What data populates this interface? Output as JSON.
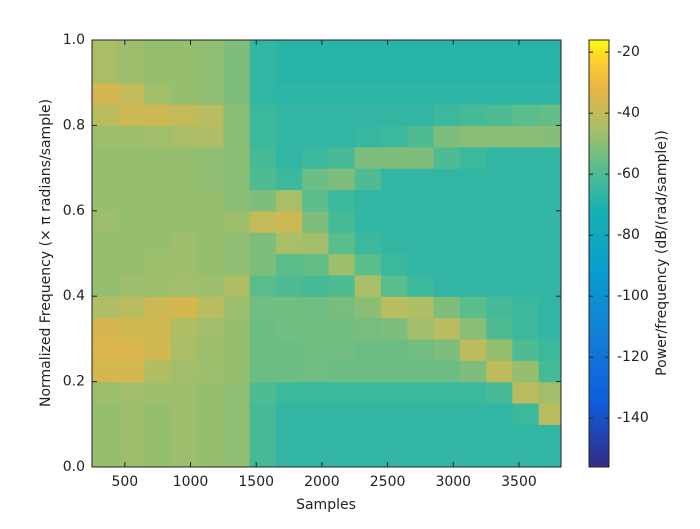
{
  "chart_data": {
    "type": "heatmap",
    "xlabel": "Samples",
    "ylabel": "Normalized Frequency (× π radians/sample)",
    "colorbar_label": "Power/frequency (dB/(rad/sample))",
    "colormap": "parula",
    "xlim": [
      250,
      3820
    ],
    "xticks": [
      500,
      1000,
      1500,
      2000,
      2500,
      3000,
      3500
    ],
    "ylim": [
      0,
      1
    ],
    "yticks": [
      {
        "value": 0,
        "label": "0.0"
      },
      0.2,
      0.4,
      0.6,
      0.8,
      {
        "value": 1,
        "label": "1.0"
      }
    ],
    "clim": [
      -156,
      -16
    ],
    "cticks": [
      -140,
      -120,
      -100,
      -80,
      -60,
      -40,
      -20
    ],
    "x": [
      350,
      550,
      750,
      950,
      1150,
      1350,
      1550,
      1750,
      1950,
      2150,
      2350,
      2550,
      2750,
      2950,
      3150,
      3350,
      3550,
      3750
    ],
    "y": [
      0.025,
      0.075,
      0.125,
      0.175,
      0.225,
      0.275,
      0.325,
      0.375,
      0.425,
      0.475,
      0.525,
      0.575,
      0.625,
      0.675,
      0.725,
      0.775,
      0.825,
      0.875,
      0.925,
      0.975
    ],
    "z": [
      [
        -48,
        -47,
        -48,
        -47,
        -48,
        -49,
        -62,
        -66,
        -66,
        -66,
        -66,
        -66,
        -66,
        -66,
        -66,
        -66,
        -66,
        -66
      ],
      [
        -48,
        -47,
        -48,
        -47,
        -48,
        -49,
        -62,
        -66,
        -66,
        -66,
        -66,
        -66,
        -66,
        -66,
        -66,
        -66,
        -66,
        -66
      ],
      [
        -48,
        -47,
        -48,
        -47,
        -48,
        -49,
        -62,
        -66,
        -66,
        -66,
        -66,
        -66,
        -66,
        -66,
        -66,
        -66,
        -64,
        -42
      ],
      [
        -47,
        -46,
        -47,
        -47,
        -48,
        -49,
        -60,
        -64,
        -64,
        -64,
        -64,
        -64,
        -64,
        -64,
        -64,
        -62,
        -42,
        -46
      ],
      [
        -36,
        -36,
        -44,
        -46,
        -47,
        -48,
        -55,
        -55,
        -54,
        -55,
        -55,
        -55,
        -55,
        -55,
        -52,
        -41,
        -48,
        -62
      ],
      [
        -35,
        -35,
        -37,
        -45,
        -47,
        -48,
        -55,
        -55,
        -54,
        -54,
        -55,
        -55,
        -54,
        -52,
        -41,
        -48,
        -60,
        -64
      ],
      [
        -36,
        -37,
        -37,
        -44,
        -46,
        -48,
        -55,
        -54,
        -54,
        -54,
        -53,
        -52,
        -46,
        -42,
        -50,
        -60,
        -64,
        -66
      ],
      [
        -44,
        -42,
        -38,
        -36,
        -42,
        -47,
        -54,
        -54,
        -54,
        -53,
        -50,
        -42,
        -44,
        -52,
        -58,
        -62,
        -64,
        -66
      ],
      [
        -48,
        -47,
        -47,
        -46,
        -47,
        -44,
        -58,
        -60,
        -62,
        -60,
        -45,
        -58,
        -64,
        -66,
        -66,
        -66,
        -66,
        -66
      ],
      [
        -48,
        -48,
        -47,
        -47,
        -48,
        -49,
        -52,
        -58,
        -56,
        -47,
        -58,
        -64,
        -66,
        -66,
        -66,
        -66,
        -66,
        -66
      ],
      [
        -48,
        -48,
        -48,
        -47,
        -48,
        -49,
        -52,
        -45,
        -46,
        -58,
        -64,
        -66,
        -66,
        -66,
        -66,
        -66,
        -66,
        -66
      ],
      [
        -47,
        -48,
        -48,
        -48,
        -48,
        -47,
        -40,
        -38,
        -52,
        -62,
        -66,
        -66,
        -66,
        -66,
        -66,
        -66,
        -66,
        -66
      ],
      [
        -48,
        -48,
        -48,
        -48,
        -48,
        -50,
        -52,
        -45,
        -58,
        -64,
        -66,
        -66,
        -66,
        -66,
        -66,
        -66,
        -66,
        -66
      ],
      [
        -48,
        -48,
        -48,
        -48,
        -49,
        -50,
        -60,
        -64,
        -55,
        -52,
        -60,
        -66,
        -66,
        -66,
        -66,
        -66,
        -66,
        -66
      ],
      [
        -48,
        -48,
        -48,
        -48,
        -49,
        -50,
        -62,
        -66,
        -64,
        -62,
        -52,
        -52,
        -52,
        -60,
        -64,
        -66,
        -66,
        -66
      ],
      [
        -47,
        -47,
        -46,
        -45,
        -44,
        -50,
        -64,
        -66,
        -66,
        -66,
        -65,
        -64,
        -60,
        -52,
        -50,
        -50,
        -50,
        -51
      ],
      [
        -42,
        -38,
        -38,
        -40,
        -42,
        -50,
        -64,
        -66,
        -66,
        -66,
        -66,
        -66,
        -66,
        -64,
        -62,
        -60,
        -58,
        -56
      ],
      [
        -36,
        -40,
        -46,
        -48,
        -49,
        -52,
        -66,
        -67,
        -67,
        -67,
        -67,
        -67,
        -67,
        -67,
        -67,
        -67,
        -67,
        -67
      ],
      [
        -45,
        -47,
        -48,
        -48,
        -49,
        -52,
        -66,
        -68,
        -68,
        -68,
        -68,
        -68,
        -68,
        -68,
        -68,
        -68,
        -68,
        -68
      ],
      [
        -45,
        -47,
        -48,
        -48,
        -49,
        -52,
        -66,
        -68,
        -68,
        -68,
        -68,
        -68,
        -68,
        -68,
        -68,
        -68,
        -68,
        -68
      ]
    ]
  }
}
